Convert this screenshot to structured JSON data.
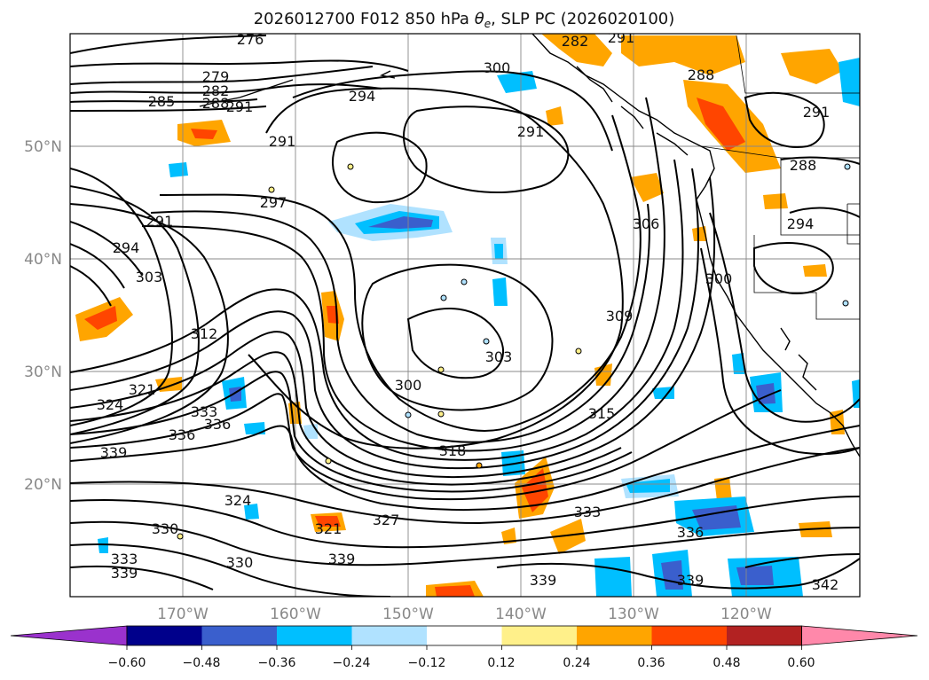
{
  "title": "2026012700 F012 850 hPa θe, SLP PC (2026020100)",
  "title_parts": {
    "prefix": "2026012700 F012 850 hPa ",
    "symbol": "θ",
    "sub": "e",
    "suffix": ", SLP PC (2026020100)"
  },
  "map": {
    "lon_range": [
      -180,
      -110
    ],
    "lat_range": [
      10,
      60
    ],
    "lat_ticks": [
      {
        "value": 50,
        "label": "50°N"
      },
      {
        "value": 40,
        "label": "40°N"
      },
      {
        "value": 30,
        "label": "30°N"
      },
      {
        "value": 20,
        "label": "20°N"
      }
    ],
    "lon_ticks": [
      {
        "value": -170,
        "label": "170°W"
      },
      {
        "value": -160,
        "label": "160°W"
      },
      {
        "value": -150,
        "label": "150°W"
      },
      {
        "value": -140,
        "label": "140°W"
      },
      {
        "value": -130,
        "label": "130°W"
      },
      {
        "value": -120,
        "label": "120°W"
      }
    ],
    "contour_labels": [
      "276",
      "279",
      "282",
      "285",
      "288",
      "291",
      "294",
      "297",
      "300",
      "303",
      "306",
      "309",
      "312",
      "315",
      "318",
      "321",
      "324",
      "327",
      "330",
      "333",
      "336",
      "339",
      "342"
    ]
  },
  "colorbar": {
    "ticks": [
      "−0.60",
      "−0.48",
      "−0.36",
      "−0.24",
      "−0.12",
      "0.12",
      "0.24",
      "0.36",
      "0.48",
      "0.60"
    ],
    "colors": [
      "#9a32cd",
      "#00008b",
      "#3a5fcd",
      "#00bfff",
      "#b0e2ff",
      "#ffffff",
      "#fff08a",
      "#ffa500",
      "#ff4500",
      "#b22222",
      "#ff88aa"
    ]
  }
}
